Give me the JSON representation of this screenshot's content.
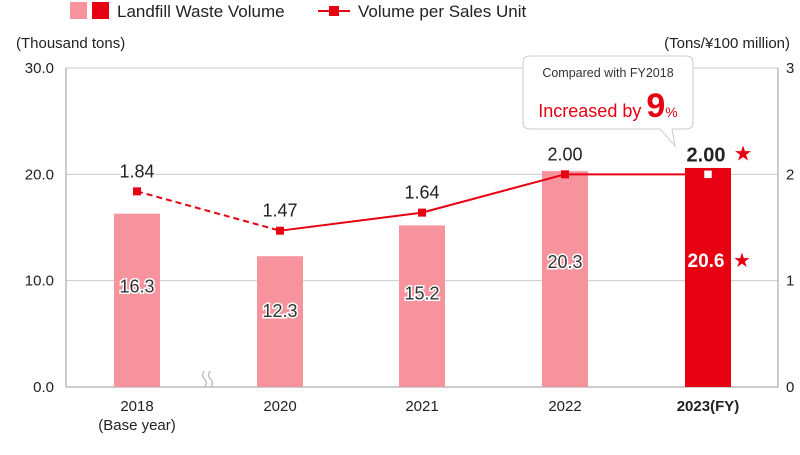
{
  "chart_data": {
    "type": "bar",
    "categories": [
      "2018",
      "2020",
      "2021",
      "2022",
      "2023"
    ],
    "category_sublabels": [
      "(Base year)",
      "",
      "",
      "",
      ""
    ],
    "fy_suffix": "(FY)",
    "series": [
      {
        "name": "Landfill Waste Volume",
        "type": "bar",
        "axis": "left",
        "values": [
          16.3,
          12.3,
          15.2,
          20.3,
          20.6
        ],
        "value_labels": [
          "16.3",
          "12.3",
          "15.2",
          "20.3",
          "20.6"
        ],
        "color": "#f7939c",
        "highlight_color": "#e60012"
      },
      {
        "name": "Volume per Sales Unit",
        "type": "line",
        "axis": "right",
        "values": [
          1.84,
          1.47,
          1.64,
          2.0,
          2.0
        ],
        "value_labels": [
          "1.84",
          "1.47",
          "1.64",
          "2.00",
          "2.00"
        ],
        "color": "#e60012",
        "dashed_segments": [
          0
        ]
      }
    ],
    "highlight_index": 4,
    "star_glyph": "★",
    "y_left": {
      "label": "(Thousand tons)",
      "min": 0,
      "max": 30,
      "ticks": [
        0,
        10,
        20,
        30
      ],
      "tick_labels": [
        "0.0",
        "10.0",
        "20.0",
        "30.0"
      ]
    },
    "y_right": {
      "label": "(Tons/¥100 million)",
      "min": 0,
      "max": 3,
      "ticks": [
        0,
        1,
        2,
        3
      ],
      "tick_labels": [
        "0",
        "1",
        "2",
        "3"
      ]
    },
    "grid": true,
    "axis_break_between": [
      0,
      1
    ],
    "legend_position": "top-left",
    "annotation": {
      "line1": "Compared with FY2018",
      "line2_prefix": "Increased by ",
      "line2_value": "9",
      "line2_suffix": "%"
    }
  },
  "colors": {
    "bar": "#f7939c",
    "highlight": "#e60012",
    "line": "#e60012",
    "grid": "#cccccc",
    "axis": "#999999",
    "text": "#222222"
  }
}
